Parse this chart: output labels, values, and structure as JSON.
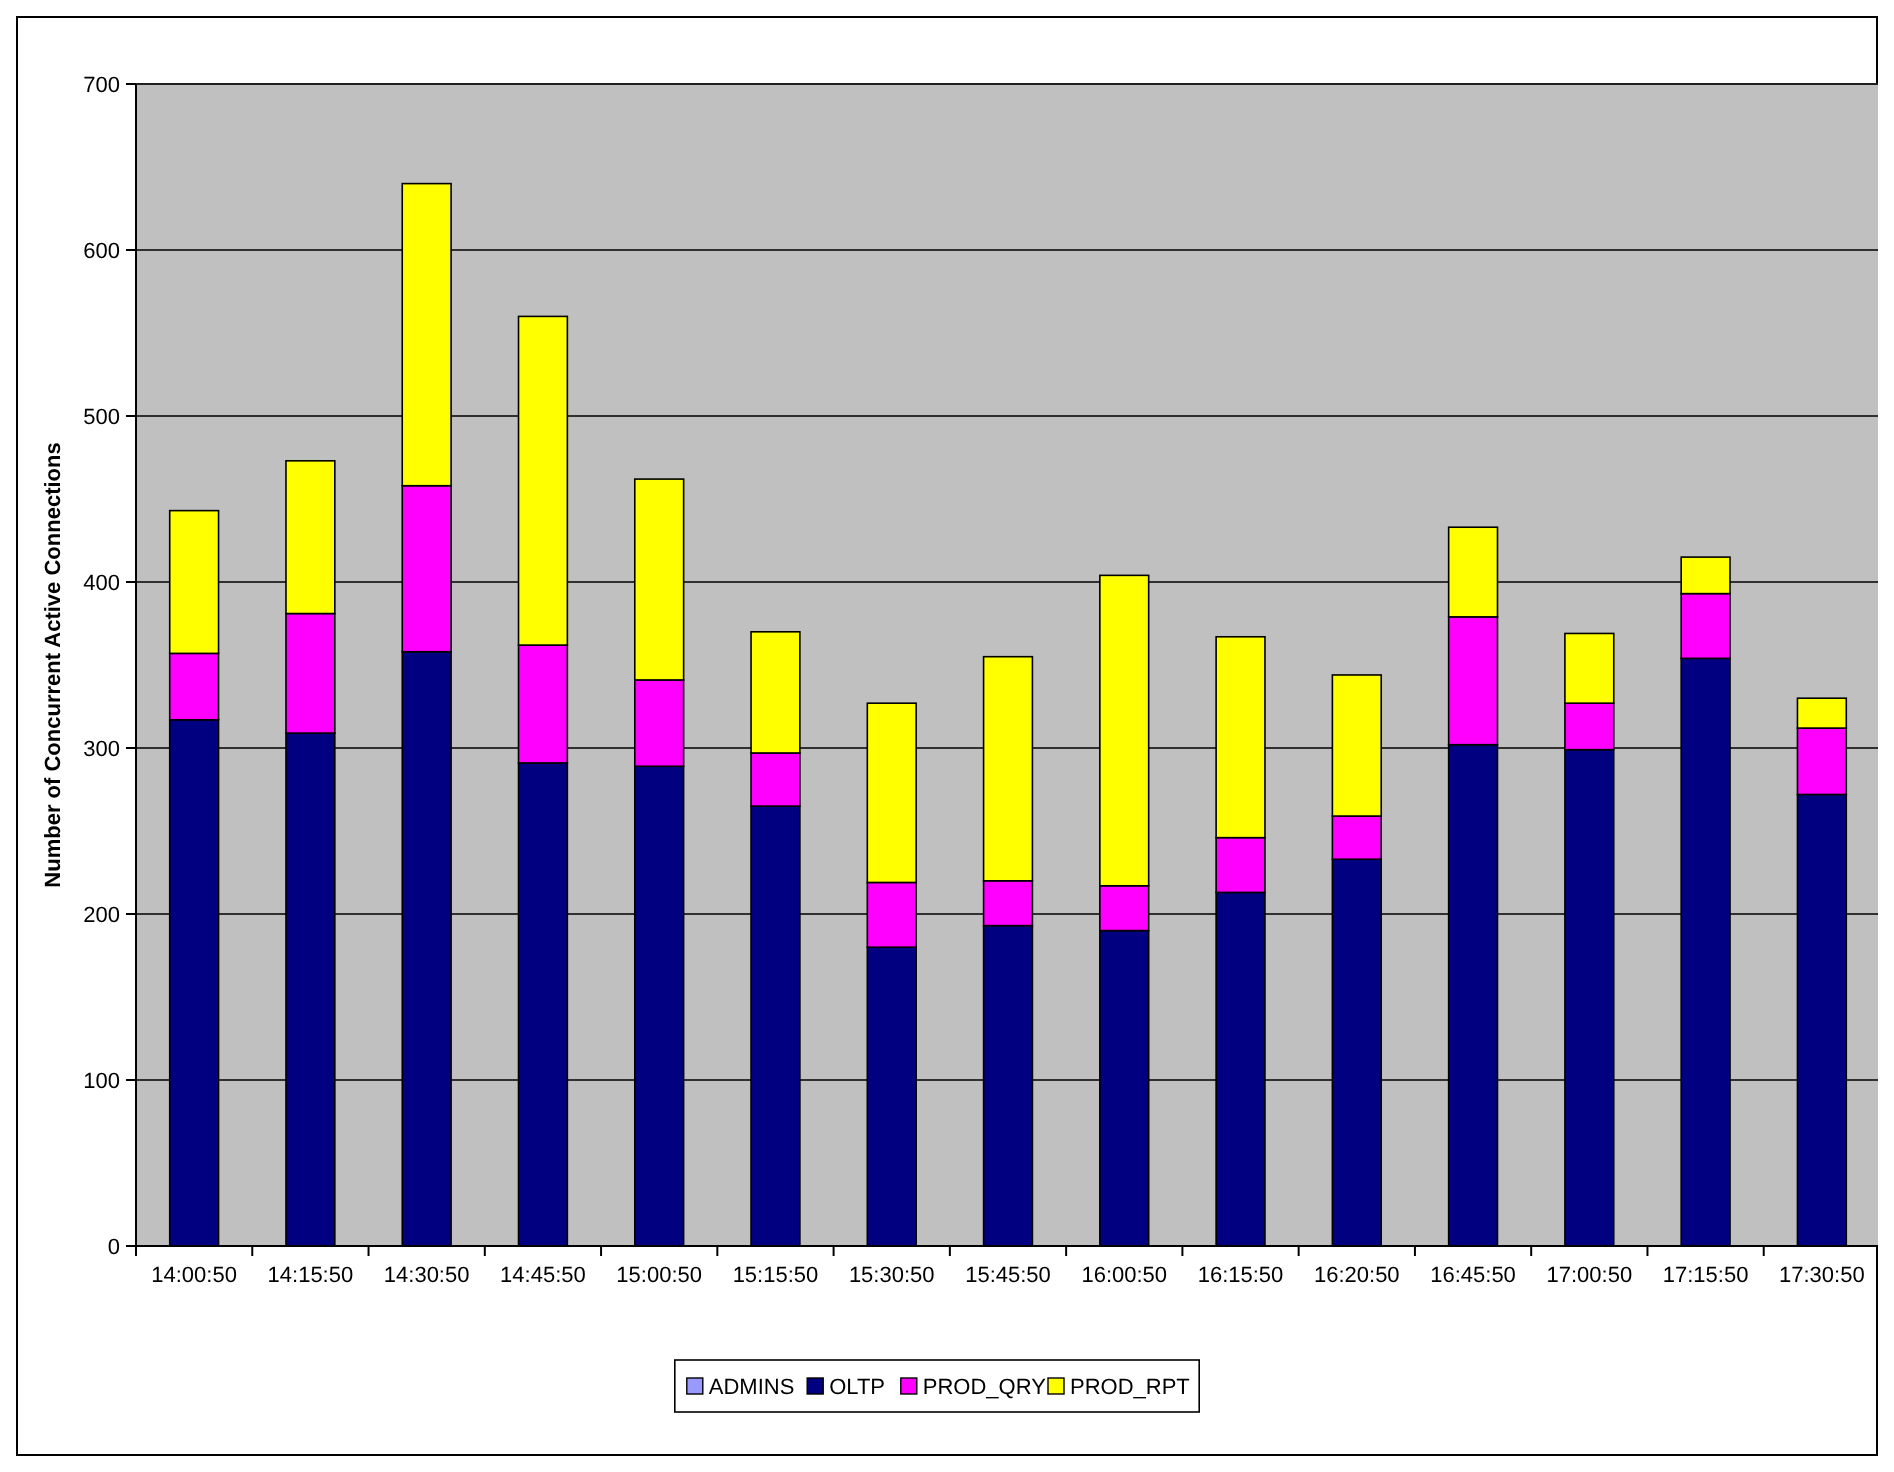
{
  "chart_data": {
    "type": "bar",
    "stacked": true,
    "ylabel": "Number of Concurrent Active Connections",
    "categories": [
      "14:00:50",
      "14:15:50",
      "14:30:50",
      "14:45:50",
      "15:00:50",
      "15:15:50",
      "15:30:50",
      "15:45:50",
      "16:00:50",
      "16:15:50",
      "16:20:50",
      "16:45:50",
      "17:00:50",
      "17:15:50",
      "17:30:50"
    ],
    "series": [
      {
        "name": "ADMINS",
        "color": "#9999ff",
        "values": [
          0,
          null,
          0,
          0,
          0,
          0,
          0,
          0,
          0,
          0,
          0,
          0,
          0,
          0,
          0
        ]
      },
      {
        "name": "OLTP",
        "color": "#000080",
        "values": [
          317,
          309,
          358,
          291,
          289,
          265,
          180,
          193,
          190,
          213,
          233,
          302,
          299,
          354,
          272
        ]
      },
      {
        "name": "PROD_QRY",
        "color": "#ff00ff",
        "values": [
          40,
          72,
          100,
          71,
          52,
          32,
          39,
          27,
          27,
          33,
          26,
          77,
          28,
          39,
          40
        ]
      },
      {
        "name": "PROD_RPT",
        "color": "#ffff00",
        "values": [
          86,
          92,
          182,
          198,
          121,
          73,
          108,
          135,
          187,
          121,
          85,
          54,
          42,
          22,
          18
        ]
      }
    ],
    "ylim": [
      0,
      700
    ],
    "yticks": [
      0,
      100,
      200,
      300,
      400,
      500,
      600,
      700
    ],
    "grid": "y",
    "legend": "bottom"
  }
}
